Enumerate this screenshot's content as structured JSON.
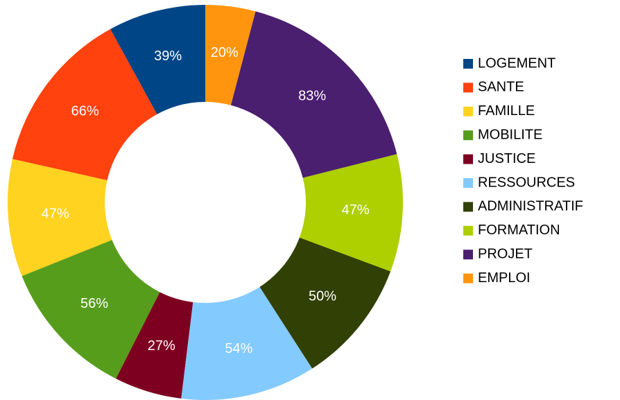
{
  "chart_data": {
    "type": "donut",
    "categories": [
      "LOGEMENT",
      "SANTE",
      "FAMILLE",
      "MOBILITE",
      "JUSTICE",
      "RESSOURCES",
      "ADMINISTRATIF",
      "FORMATION",
      "PROJET",
      "EMPLOI"
    ],
    "values": [
      39,
      66,
      47,
      56,
      27,
      54,
      50,
      47,
      83,
      20
    ],
    "value_labels": [
      "39%",
      "66%",
      "47%",
      "56%",
      "27%",
      "54%",
      "50%",
      "47%",
      "83%",
      "20%"
    ],
    "colors": [
      "#004586",
      "#ff420e",
      "#ffd320",
      "#579d1c",
      "#7e0021",
      "#83caff",
      "#314004",
      "#aecf00",
      "#4b1f6f",
      "#ff950e"
    ],
    "legend": "right"
  }
}
